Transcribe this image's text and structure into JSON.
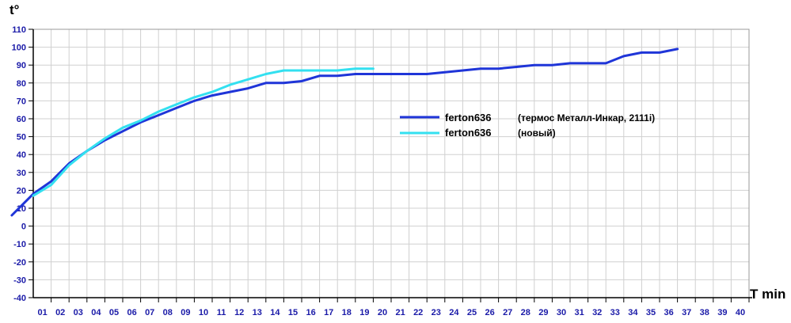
{
  "chart_data": {
    "type": "line",
    "xlabel": "T min",
    "ylabel": "t°",
    "xlim": [
      0,
      40
    ],
    "ylim": [
      -40,
      110
    ],
    "grid": true,
    "legend_position": "right-middle",
    "x_ticks": [
      "01",
      "02",
      "03",
      "04",
      "05",
      "06",
      "07",
      "08",
      "09",
      "10",
      "11",
      "12",
      "13",
      "14",
      "15",
      "16",
      "17",
      "18",
      "19",
      "20",
      "21",
      "22",
      "23",
      "24",
      "25",
      "26",
      "27",
      "28",
      "29",
      "30",
      "31",
      "32",
      "33",
      "34",
      "35",
      "36",
      "37",
      "38",
      "39",
      "40"
    ],
    "y_ticks": [
      "110",
      "100",
      "90",
      "80",
      "70",
      "60",
      "50",
      "40",
      "30",
      "20",
      "10",
      "0",
      "-10",
      "-20",
      "-30",
      "-40"
    ],
    "series": [
      {
        "name": "ferton636",
        "description": "(термос Металл-Инкар, 2111i)",
        "color": "#1f35d8",
        "x": [
          -1.2,
          0,
          1,
          2,
          3,
          4,
          5,
          6,
          7,
          8,
          9,
          10,
          11,
          12,
          13,
          14,
          15,
          16,
          17,
          18,
          19,
          20,
          21,
          22,
          23,
          24,
          25,
          26,
          27,
          28,
          29,
          30,
          31,
          32,
          33,
          34,
          35,
          36
        ],
        "y": [
          6,
          18,
          25,
          35,
          42,
          48,
          53,
          58,
          62,
          66,
          70,
          73,
          75,
          77,
          80,
          80,
          81,
          84,
          84,
          85,
          85,
          85,
          85,
          85,
          86,
          87,
          88,
          88,
          89,
          90,
          90,
          91,
          91,
          91,
          95,
          97,
          97,
          99
        ]
      },
      {
        "name": "ferton636",
        "description": "(новый)",
        "color": "#33e0f0",
        "x": [
          0,
          1,
          2,
          3,
          4,
          5,
          6,
          7,
          8,
          9,
          10,
          11,
          12,
          13,
          14,
          15,
          16,
          17,
          18,
          19
        ],
        "y": [
          17,
          23,
          34,
          42,
          49,
          55,
          59,
          64,
          68,
          72,
          75,
          79,
          82,
          85,
          87,
          87,
          87,
          87,
          88,
          88
        ]
      }
    ]
  }
}
